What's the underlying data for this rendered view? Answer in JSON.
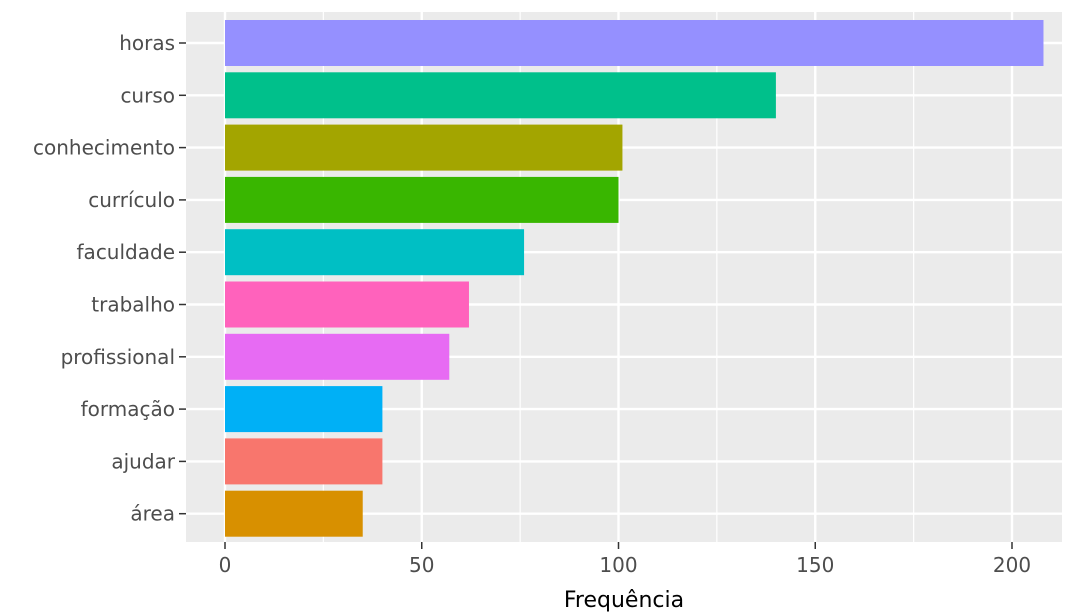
{
  "chart_data": {
    "type": "bar",
    "orientation": "horizontal",
    "title": "",
    "xlabel": "Frequência",
    "ylabel": "",
    "categories": [
      "horas",
      "curso",
      "conhecimento",
      "currículo",
      "faculdade",
      "trabalho",
      "profissional",
      "formação",
      "ajudar",
      "área"
    ],
    "values": [
      208,
      140,
      101,
      100,
      76,
      62,
      57,
      40,
      40,
      35
    ],
    "colors": [
      "#9590FF",
      "#00C08B",
      "#A3A500",
      "#39B600",
      "#00BFC4",
      "#FF62BC",
      "#E76BF3",
      "#00B0F6",
      "#F8766D",
      "#D89000"
    ],
    "xlim": [
      -10,
      213
    ],
    "xticks": [
      0,
      50,
      100,
      150,
      200
    ],
    "grid": true,
    "legend": "none",
    "panel_background": "#EBEBEB",
    "grid_color": "#FFFFFF"
  }
}
